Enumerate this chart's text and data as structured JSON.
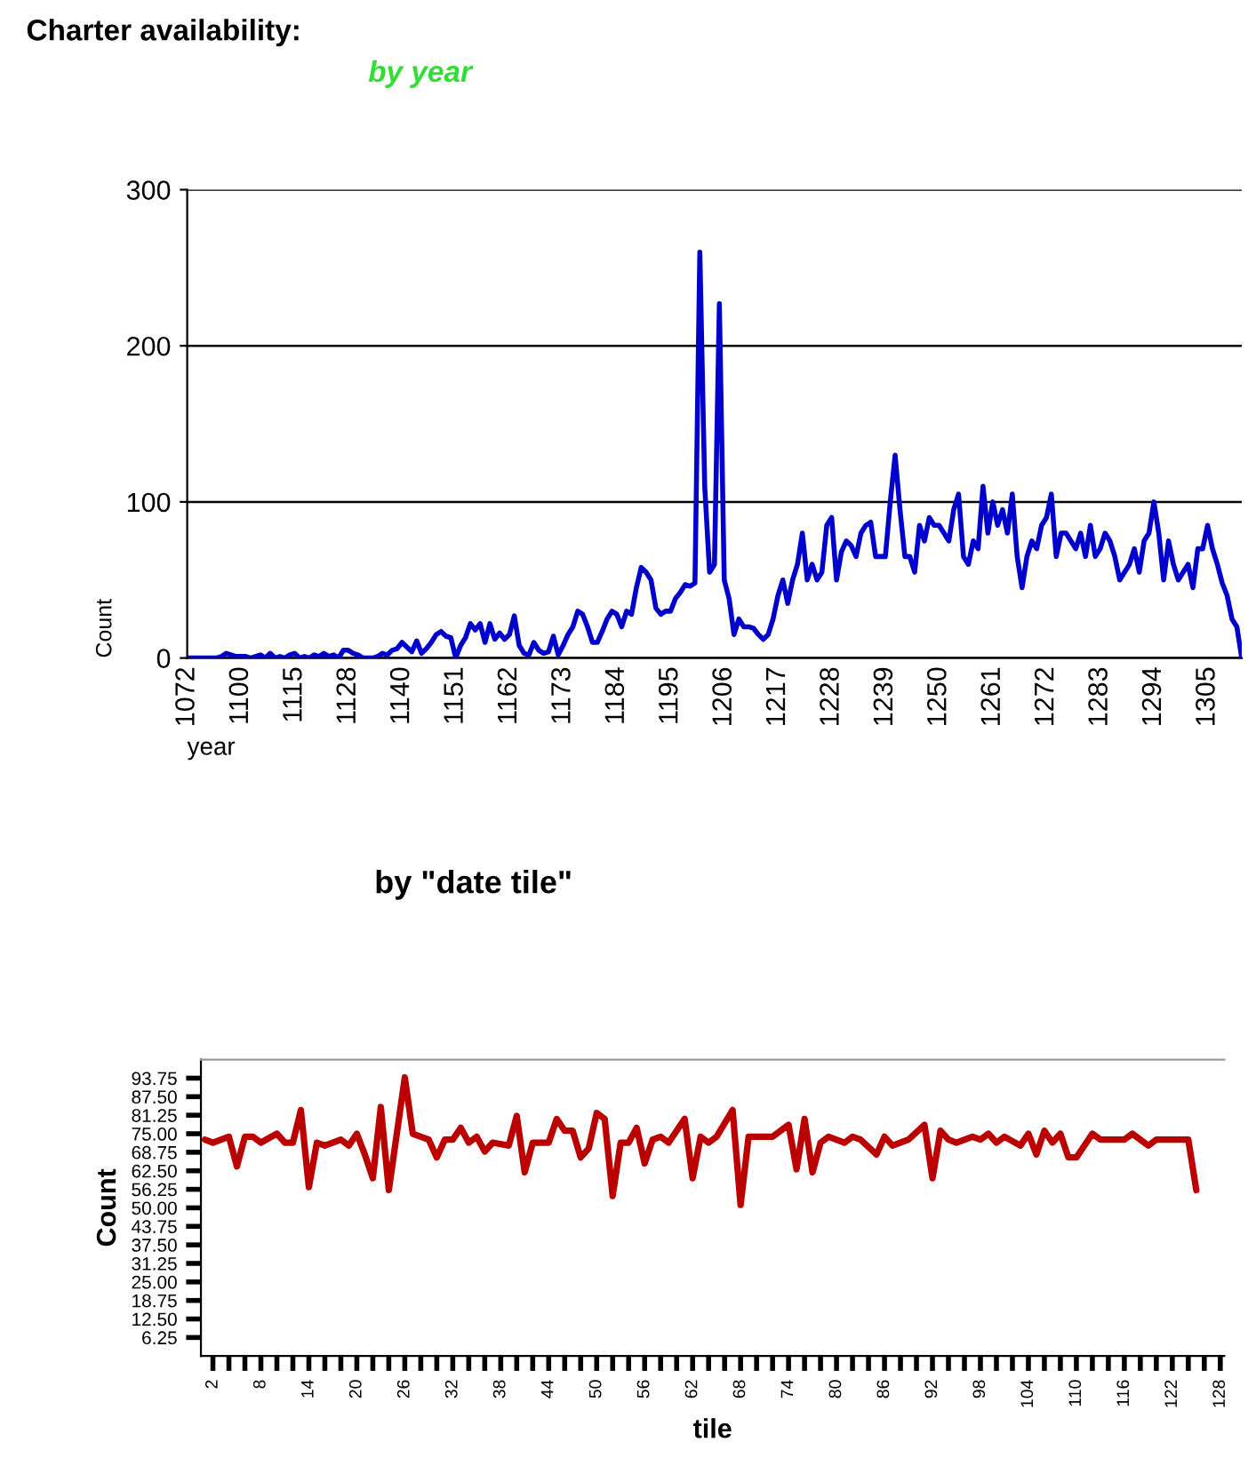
{
  "chart_data": [
    {
      "type": "line",
      "title": "Charter availability:",
      "subtitle": "by year",
      "xlabel": "year",
      "ylabel": "Count",
      "categories": [
        "1072",
        null,
        null,
        null,
        null,
        null,
        null,
        null,
        null,
        null,
        null,
        "1100",
        null,
        null,
        null,
        null,
        null,
        null,
        null,
        null,
        null,
        null,
        "1115",
        null,
        null,
        null,
        null,
        null,
        null,
        null,
        null,
        null,
        null,
        "1128",
        null,
        null,
        null,
        null,
        null,
        null,
        null,
        null,
        null,
        null,
        "1140",
        null,
        null,
        null,
        null,
        null,
        null,
        null,
        null,
        null,
        null,
        "1151",
        null,
        null,
        null,
        null,
        null,
        null,
        null,
        null,
        null,
        null,
        "1162",
        null,
        null,
        null,
        null,
        null,
        null,
        null,
        null,
        null,
        null,
        "1173",
        null,
        null,
        null,
        null,
        null,
        null,
        null,
        null,
        null,
        null,
        "1184",
        null,
        null,
        null,
        null,
        null,
        null,
        null,
        null,
        null,
        null,
        "1195",
        null,
        null,
        null,
        null,
        null,
        null,
        null,
        null,
        null,
        null,
        "1206",
        null,
        null,
        null,
        null,
        null,
        null,
        null,
        null,
        null,
        null,
        "1217",
        null,
        null,
        null,
        null,
        null,
        null,
        null,
        null,
        null,
        null,
        "1228",
        null,
        null,
        null,
        null,
        null,
        null,
        null,
        null,
        null,
        null,
        "1239",
        null,
        null,
        null,
        null,
        null,
        null,
        null,
        null,
        null,
        null,
        "1250",
        null,
        null,
        null,
        null,
        null,
        null,
        null,
        null,
        null,
        null,
        "1261",
        null,
        null,
        null,
        null,
        null,
        null,
        null,
        null,
        null,
        null,
        "1272",
        null,
        null,
        null,
        null,
        null,
        null,
        null,
        null,
        null,
        null,
        "1283",
        null,
        null,
        null,
        null,
        null,
        null,
        null,
        null,
        null,
        null,
        "1294",
        null,
        null,
        null,
        null,
        null,
        null,
        null,
        null,
        null,
        null,
        "1305",
        null,
        null,
        null,
        null,
        null,
        null,
        null
      ],
      "series": [
        {
          "color": "#0000cc",
          "values": [
            0,
            0,
            0,
            0,
            0,
            0,
            0,
            1,
            3,
            2,
            1,
            1,
            1,
            0,
            1,
            2,
            0,
            3,
            0,
            1,
            0,
            2,
            3,
            0,
            1,
            0,
            2,
            1,
            3,
            1,
            2,
            0,
            5,
            5,
            3,
            2,
            0,
            0,
            0,
            1,
            3,
            2,
            5,
            6,
            10,
            7,
            4,
            11,
            3,
            6,
            10,
            15,
            17,
            14,
            13,
            0,
            8,
            13,
            22,
            18,
            22,
            10,
            22,
            12,
            16,
            12,
            15,
            27,
            8,
            3,
            2,
            10,
            5,
            3,
            4,
            14,
            2,
            8,
            15,
            20,
            30,
            28,
            20,
            10,
            10,
            17,
            25,
            30,
            28,
            20,
            30,
            28,
            45,
            58,
            55,
            50,
            32,
            28,
            30,
            30,
            38,
            42,
            47,
            46,
            48,
            260,
            110,
            55,
            60,
            227,
            50,
            38,
            15,
            25,
            20,
            20,
            19,
            15,
            12,
            15,
            25,
            40,
            50,
            35,
            50,
            60,
            80,
            50,
            60,
            50,
            55,
            85,
            90,
            50,
            68,
            75,
            72,
            65,
            80,
            85,
            87,
            65,
            65,
            65,
            100,
            130,
            95,
            65,
            65,
            55,
            85,
            75,
            90,
            85,
            85,
            80,
            75,
            95,
            105,
            65,
            60,
            75,
            70,
            110,
            80,
            100,
            85,
            95,
            80,
            105,
            65,
            45,
            65,
            75,
            70,
            85,
            90,
            105,
            65,
            80,
            80,
            75,
            70,
            80,
            65,
            85,
            65,
            70,
            80,
            75,
            65,
            50,
            55,
            60,
            70,
            55,
            75,
            80,
            100,
            80,
            50,
            75,
            60,
            50,
            55,
            60,
            45,
            70,
            70,
            85,
            70,
            60,
            48,
            40,
            25,
            20,
            0
          ]
        }
      ],
      "ylim": [
        0,
        300
      ],
      "yticks": [
        0,
        100,
        200,
        300
      ],
      "grid": "y"
    },
    {
      "type": "line",
      "title": "by \"date tile\"",
      "xlabel": "tile",
      "ylabel": "Count",
      "xlim": [
        0.5,
        128.5
      ],
      "xticks": [
        2,
        {
          "value": 4,
          "label": null
        },
        {
          "value": 6,
          "label": null
        },
        8,
        {
          "value": 10,
          "label": null
        },
        {
          "value": 12,
          "label": null
        },
        14,
        {
          "value": 16,
          "label": null
        },
        {
          "value": 18,
          "label": null
        },
        20,
        {
          "value": 22,
          "label": null
        },
        {
          "value": 24,
          "label": null
        },
        26,
        {
          "value": 28,
          "label": null
        },
        {
          "value": 30,
          "label": null
        },
        32,
        {
          "value": 34,
          "label": null
        },
        {
          "value": 36,
          "label": null
        },
        38,
        {
          "value": 40,
          "label": null
        },
        {
          "value": 42,
          "label": null
        },
        44,
        {
          "value": 46,
          "label": null
        },
        {
          "value": 48,
          "label": null
        },
        50,
        {
          "value": 52,
          "label": null
        },
        {
          "value": 54,
          "label": null
        },
        56,
        {
          "value": 58,
          "label": null
        },
        {
          "value": 60,
          "label": null
        },
        62,
        {
          "value": 64,
          "label": null
        },
        {
          "value": 66,
          "label": null
        },
        68,
        {
          "value": 70,
          "label": null
        },
        {
          "value": 72,
          "label": null
        },
        74,
        {
          "value": 76,
          "label": null
        },
        {
          "value": 78,
          "label": null
        },
        80,
        {
          "value": 82,
          "label": null
        },
        {
          "value": 84,
          "label": null
        },
        86,
        {
          "value": 88,
          "label": null
        },
        {
          "value": 90,
          "label": null
        },
        92,
        {
          "value": 94,
          "label": null
        },
        {
          "value": 96,
          "label": null
        },
        98,
        {
          "value": 100,
          "label": null
        },
        {
          "value": 102,
          "label": null
        },
        104,
        {
          "value": 106,
          "label": null
        },
        {
          "value": 108,
          "label": null
        },
        110,
        {
          "value": 112,
          "label": null
        },
        {
          "value": 114,
          "label": null
        },
        116,
        {
          "value": 118,
          "label": null
        },
        {
          "value": 120,
          "label": null
        },
        122,
        {
          "value": 124,
          "label": null
        },
        {
          "value": 126,
          "label": null
        },
        128
      ],
      "ylim": [
        0,
        100
      ],
      "yticks": [
        6.25,
        {
          "value": 12.5,
          "label": "12.50"
        },
        18.75,
        {
          "value": 25,
          "label": "25.00"
        },
        31.25,
        {
          "value": 37.5,
          "label": "37.50"
        },
        43.75,
        {
          "value": 50,
          "label": "50.00"
        },
        56.25,
        {
          "value": 62.5,
          "label": "62.50"
        },
        68.75,
        {
          "value": 75,
          "label": "75.00"
        },
        81.25,
        {
          "value": 87.5,
          "label": "87.50"
        },
        93.75
      ],
      "series": [
        {
          "color": "#bb0000",
          "x": [
            1,
            2,
            4,
            5,
            6,
            7,
            8,
            10,
            11,
            12,
            13,
            14,
            15,
            16,
            18,
            19,
            20,
            21,
            22,
            23,
            24,
            26,
            27,
            29,
            30,
            31,
            32,
            33,
            34,
            35,
            36,
            37,
            39,
            40,
            41,
            42,
            44,
            45,
            46,
            47,
            48,
            49,
            50,
            51,
            52,
            53,
            54,
            55,
            56,
            57,
            58,
            59,
            61,
            62,
            63,
            64,
            65,
            67,
            68,
            69,
            72,
            74,
            75,
            76,
            77,
            78,
            79,
            81,
            82,
            83,
            85,
            86,
            87,
            89,
            91,
            92,
            93,
            94,
            95,
            97,
            98,
            99,
            100,
            101,
            103,
            104,
            105,
            106,
            107,
            108,
            109,
            110,
            112,
            113,
            116,
            117,
            119,
            120,
            124,
            125
          ],
          "values": [
            73,
            72,
            74,
            64,
            74,
            74,
            72,
            75,
            72,
            72,
            83,
            57,
            72,
            71,
            73,
            71,
            75,
            68,
            60,
            84,
            56,
            94,
            75,
            73,
            67,
            73,
            73,
            77,
            72,
            74,
            69,
            72,
            71,
            81,
            62,
            72,
            72,
            80,
            76,
            76,
            67,
            70,
            82,
            80,
            54,
            72,
            72,
            77,
            65,
            73,
            74,
            72,
            80,
            60,
            74,
            72,
            74,
            83,
            51,
            74,
            74,
            78,
            63,
            80,
            62,
            72,
            74,
            72,
            74,
            73,
            68,
            74,
            71,
            73,
            78,
            60,
            76,
            73,
            72,
            74,
            73,
            75,
            72,
            74,
            71,
            75,
            68,
            76,
            72,
            75,
            67,
            67,
            75,
            73,
            73,
            75,
            71,
            73,
            73,
            56
          ]
        }
      ]
    }
  ]
}
